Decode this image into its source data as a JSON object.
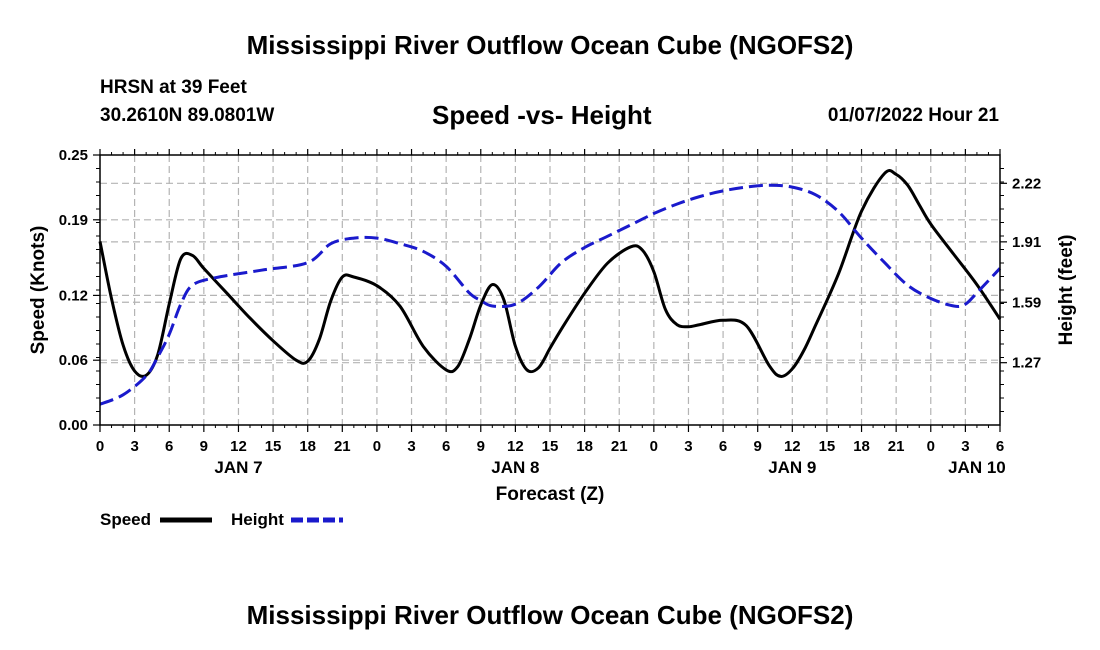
{
  "header": {
    "title": "Mississippi River Outflow Ocean Cube (NGOFS2)",
    "station": "HRSN at 39 Feet",
    "coordinates": "30.2610N  89.0801W",
    "subtitle": "Speed -vs- Height",
    "datetime": "01/07/2022 Hour 21"
  },
  "footer": {
    "title": "Mississippi River Outflow Ocean Cube (NGOFS2)"
  },
  "colors": {
    "speed": "#000000",
    "height": "#1a1acc",
    "grid": "#b4b4b4"
  },
  "chart_data": {
    "type": "line",
    "title": "Speed -vs- Height",
    "xlabel": "Forecast (Z)",
    "ylabel": "Speed (Knots)",
    "y2label": "Height (feet)",
    "x_range_hours": [
      0,
      78
    ],
    "xticks": [
      {
        "h": 0,
        "label": "0"
      },
      {
        "h": 3,
        "label": "3"
      },
      {
        "h": 6,
        "label": "6"
      },
      {
        "h": 9,
        "label": "9"
      },
      {
        "h": 12,
        "label": "12"
      },
      {
        "h": 15,
        "label": "15"
      },
      {
        "h": 18,
        "label": "18"
      },
      {
        "h": 21,
        "label": "21"
      },
      {
        "h": 24,
        "label": "0"
      },
      {
        "h": 27,
        "label": "3"
      },
      {
        "h": 30,
        "label": "6"
      },
      {
        "h": 33,
        "label": "9"
      },
      {
        "h": 36,
        "label": "12"
      },
      {
        "h": 39,
        "label": "15"
      },
      {
        "h": 42,
        "label": "18"
      },
      {
        "h": 45,
        "label": "21"
      },
      {
        "h": 48,
        "label": "0"
      },
      {
        "h": 51,
        "label": "3"
      },
      {
        "h": 54,
        "label": "6"
      },
      {
        "h": 57,
        "label": "9"
      },
      {
        "h": 60,
        "label": "12"
      },
      {
        "h": 63,
        "label": "15"
      },
      {
        "h": 66,
        "label": "18"
      },
      {
        "h": 69,
        "label": "21"
      },
      {
        "h": 72,
        "label": "0"
      },
      {
        "h": 75,
        "label": "3"
      },
      {
        "h": 78,
        "label": "6"
      }
    ],
    "day_labels": [
      {
        "h": 12,
        "label": "JAN 7"
      },
      {
        "h": 36,
        "label": "JAN 8"
      },
      {
        "h": 60,
        "label": "JAN 9"
      },
      {
        "h": 76,
        "label": "JAN 10"
      }
    ],
    "y_left": {
      "range": [
        0,
        0.25
      ],
      "ticks": [
        "0.00",
        "0.06",
        "0.12",
        "0.19",
        "0.25"
      ]
    },
    "y_right": {
      "range": [
        0.94,
        2.37
      ],
      "ticks": [
        "1.27",
        "1.59",
        "1.91",
        "2.22"
      ]
    },
    "series": [
      {
        "name": "Speed",
        "axis": "left",
        "style": "solid",
        "x": [
          0,
          1,
          2,
          3,
          4,
          5,
          6,
          7,
          8,
          9,
          11,
          13,
          15,
          17,
          18,
          19,
          20,
          21,
          22,
          24,
          26,
          28,
          30,
          31,
          32,
          33,
          34,
          35,
          36,
          37,
          38,
          39,
          40,
          42,
          44,
          46,
          47,
          48,
          49,
          50,
          51,
          52,
          54,
          56,
          58,
          59,
          60,
          61,
          62,
          64,
          66,
          68,
          69,
          70,
          71,
          72,
          74,
          76,
          78
        ],
        "values": [
          0.17,
          0.117,
          0.074,
          0.05,
          0.046,
          0.065,
          0.112,
          0.154,
          0.157,
          0.145,
          0.122,
          0.099,
          0.078,
          0.06,
          0.059,
          0.079,
          0.115,
          0.137,
          0.137,
          0.129,
          0.11,
          0.073,
          0.051,
          0.054,
          0.079,
          0.111,
          0.13,
          0.116,
          0.073,
          0.051,
          0.053,
          0.071,
          0.089,
          0.122,
          0.15,
          0.165,
          0.162,
          0.142,
          0.107,
          0.093,
          0.091,
          0.093,
          0.097,
          0.092,
          0.055,
          0.045,
          0.052,
          0.069,
          0.092,
          0.14,
          0.198,
          0.233,
          0.232,
          0.222,
          0.204,
          0.186,
          0.158,
          0.13,
          0.098
        ]
      },
      {
        "name": "Height",
        "axis": "right",
        "style": "dashed",
        "x": [
          0,
          2,
          4,
          5,
          6,
          7,
          8,
          10,
          14,
          18,
          20,
          22,
          24,
          26,
          28,
          30,
          32,
          33,
          34,
          36,
          38,
          40,
          42,
          44,
          46,
          48,
          50,
          52,
          54,
          56,
          58,
          60,
          62,
          64,
          66,
          68,
          70,
          72,
          74,
          75,
          76,
          78
        ],
        "values": [
          1.05,
          1.1,
          1.2,
          1.3,
          1.42,
          1.58,
          1.68,
          1.72,
          1.76,
          1.8,
          1.9,
          1.93,
          1.93,
          1.9,
          1.86,
          1.78,
          1.64,
          1.6,
          1.57,
          1.58,
          1.67,
          1.8,
          1.88,
          1.94,
          2.0,
          2.06,
          2.11,
          2.15,
          2.18,
          2.2,
          2.21,
          2.2,
          2.16,
          2.07,
          1.93,
          1.8,
          1.68,
          1.61,
          1.57,
          1.58,
          1.64,
          1.77
        ]
      }
    ],
    "legend": [
      {
        "label": "Speed",
        "style": "solid"
      },
      {
        "label": "Height",
        "style": "dashed"
      }
    ],
    "grid": true
  }
}
